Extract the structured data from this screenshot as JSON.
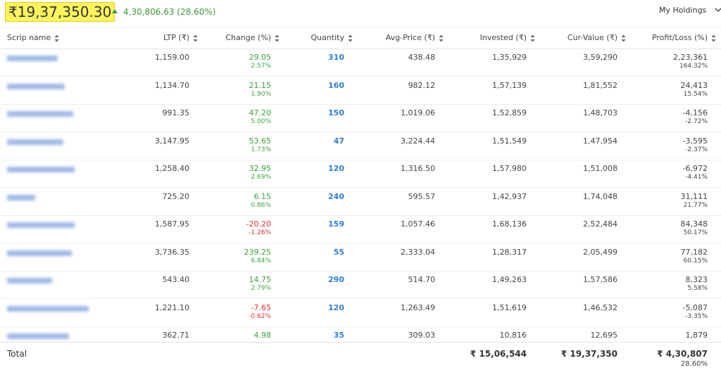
{
  "header": {
    "total_value": "₹19,37,350.30",
    "day_change": "4,30,806.63 (28.60%)",
    "menu": "My Holdings"
  },
  "table": {
    "columns": [
      "Scrip name",
      "LTP (₹)",
      "Change (%)",
      "Quantity",
      "Avg-Price (₹)",
      "Invested (₹)",
      "Cur-Value (₹)",
      "Profit/Loss (%)"
    ],
    "rows": [
      {
        "ltp": "1,159.00",
        "change": "29.05",
        "change_pct": "2.57%",
        "quantity": "310",
        "avg_price": "438.48",
        "invested": "1,35,929",
        "cur_value": "3,59,290",
        "pl": "2,23,361",
        "pl_pct": "164.32%"
      },
      {
        "ltp": "1,134.70",
        "change": "21.15",
        "change_pct": "1.90%",
        "quantity": "160",
        "avg_price": "982.12",
        "invested": "1,57,139",
        "cur_value": "1,81,552",
        "pl": "24,413",
        "pl_pct": "15.54%"
      },
      {
        "ltp": "991.35",
        "change": "47.20",
        "change_pct": "5.00%",
        "quantity": "150",
        "avg_price": "1,019.06",
        "invested": "1,52,859",
        "cur_value": "1,48,703",
        "pl": "-4,156",
        "pl_pct": "-2.72%"
      },
      {
        "ltp": "3,147.95",
        "change": "53.65",
        "change_pct": "1.73%",
        "quantity": "47",
        "avg_price": "3,224.44",
        "invested": "1,51,549",
        "cur_value": "1,47,954",
        "pl": "-3,595",
        "pl_pct": "-2.37%"
      },
      {
        "ltp": "1,258.40",
        "change": "32.95",
        "change_pct": "2.69%",
        "quantity": "120",
        "avg_price": "1,316.50",
        "invested": "1,57,980",
        "cur_value": "1,51,008",
        "pl": "-6,972",
        "pl_pct": "-4.41%"
      },
      {
        "ltp": "725.20",
        "change": "6.15",
        "change_pct": "0.86%",
        "quantity": "240",
        "avg_price": "595.57",
        "invested": "1,42,937",
        "cur_value": "1,74,048",
        "pl": "31,111",
        "pl_pct": "21.77%"
      },
      {
        "ltp": "1,587.95",
        "change": "-20.20",
        "change_pct": "-1.26%",
        "quantity": "159",
        "avg_price": "1,057.46",
        "invested": "1,68,136",
        "cur_value": "2,52,484",
        "pl": "84,348",
        "pl_pct": "50.17%"
      },
      {
        "ltp": "3,736.35",
        "change": "239.25",
        "change_pct": "6.84%",
        "quantity": "55",
        "avg_price": "2,333.04",
        "invested": "1,28,317",
        "cur_value": "2,05,499",
        "pl": "77,182",
        "pl_pct": "60.15%"
      },
      {
        "ltp": "543.40",
        "change": "14.75",
        "change_pct": "2.79%",
        "quantity": "290",
        "avg_price": "514.70",
        "invested": "1,49,263",
        "cur_value": "1,57,586",
        "pl": "8,323",
        "pl_pct": "5.58%"
      },
      {
        "ltp": "1,221.10",
        "change": "-7.65",
        "change_pct": "-0.62%",
        "quantity": "120",
        "avg_price": "1,263.49",
        "invested": "1,51,619",
        "cur_value": "1,46,532",
        "pl": "-5,087",
        "pl_pct": "-3.35%"
      },
      {
        "ltp": "362.71",
        "change": "4.98",
        "quantity": "35",
        "avg_price": "309.03",
        "invested": "10,816",
        "cur_value": "12,695",
        "pl": "1,879"
      }
    ],
    "total": {
      "label": "Total",
      "invested": "₹ 15,06,544",
      "cur_value": "₹ 19,37,350",
      "pl": "₹ 4,30,807",
      "pl_pct": "28.60%"
    }
  }
}
